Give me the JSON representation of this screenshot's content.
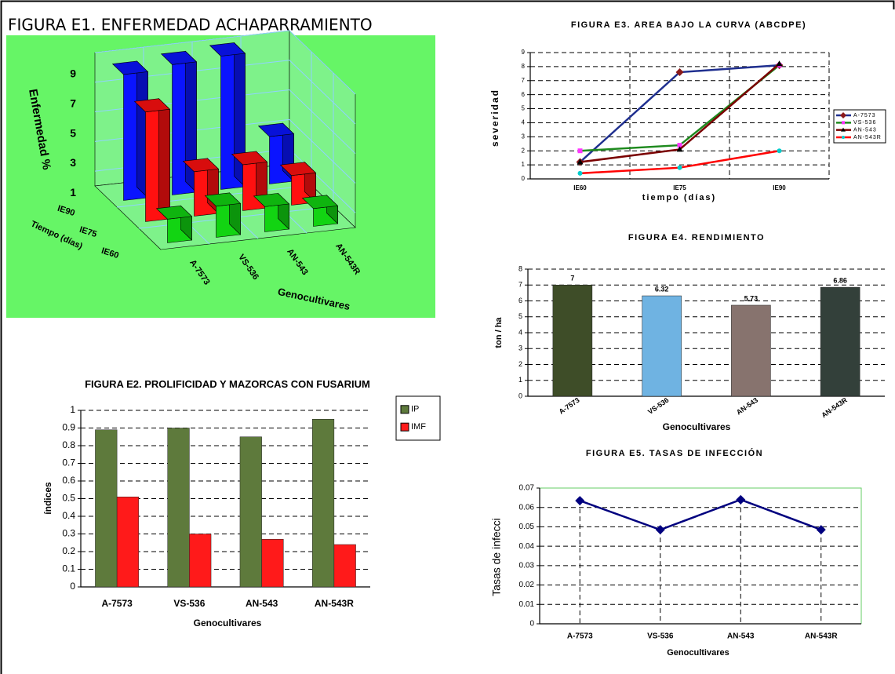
{
  "chart_data": [
    {
      "type": "bar3d",
      "title": "FIGURA E1. ENFERMEDAD ACHAPARRAMIENTO",
      "ylabel": "Enfermedad %",
      "xlabel": "Genocultivares",
      "zlabel": "Tiempo (días)",
      "background": "#66f566",
      "categories": [
        "A-7573",
        "VS-536",
        "AN-543",
        "AN-543R"
      ],
      "series": [
        {
          "name": "IE90",
          "color": "#0a14ff",
          "values": [
            8.5,
            8.8,
            9.0,
            3.2
          ]
        },
        {
          "name": "IE75",
          "color": "#ff1010",
          "values": [
            7.4,
            3.0,
            3.1,
            2.0
          ]
        },
        {
          "name": "IE60",
          "color": "#12d412",
          "values": [
            1.6,
            2.1,
            1.7,
            1.2
          ]
        }
      ],
      "ylim": [
        0,
        9
      ],
      "yticks": [
        1,
        3,
        5,
        7,
        9
      ],
      "grid": true
    },
    {
      "type": "bar",
      "title": "FIGURA E2. PROLIFICIDAD Y MAZORCAS CON FUSARIUM",
      "ylabel": "índices",
      "xlabel": "Genocultivares",
      "categories": [
        "A-7573",
        "VS-536",
        "AN-543",
        "AN-543R"
      ],
      "series": [
        {
          "name": "IP",
          "color": "#5e7a3c",
          "values": [
            0.89,
            0.9,
            0.85,
            0.95
          ]
        },
        {
          "name": "IMF",
          "color": "#ff1a1a",
          "values": [
            0.51,
            0.3,
            0.27,
            0.24
          ]
        }
      ],
      "ylim": [
        0,
        1
      ],
      "yticks": [
        0,
        0.1,
        0.2,
        0.3,
        0.4,
        0.5,
        0.6,
        0.7,
        0.8,
        0.9,
        1
      ],
      "grid": true,
      "legend": "right"
    },
    {
      "type": "line",
      "title": "FIGURA E3. AREA BAJO LA CURVA (ABCDPE)",
      "ylabel": "severidad",
      "xlabel": "tiempo (días)",
      "categories": [
        "IE60",
        "IE75",
        "IE90"
      ],
      "series": [
        {
          "name": "A-7573",
          "color": "#1f2f8f",
          "marker": "diamond",
          "marker_color": "#8b1a1a",
          "values": [
            1.2,
            7.6,
            8.1
          ]
        },
        {
          "name": "VS-536",
          "color": "#1e8a1e",
          "marker": "square",
          "marker_color": "#ff33ff",
          "values": [
            2.0,
            2.4,
            8.1
          ]
        },
        {
          "name": "AN-543",
          "color": "#7a0000",
          "marker": "triangle",
          "marker_color": "#000000",
          "values": [
            1.2,
            2.1,
            8.2
          ]
        },
        {
          "name": "AN-543R",
          "color": "#ff0000",
          "marker": "circle",
          "marker_color": "#00cccc",
          "values": [
            0.4,
            0.8,
            2.0
          ]
        }
      ],
      "ylim": [
        0,
        9
      ],
      "yticks": [
        0,
        1,
        2,
        3,
        4,
        5,
        6,
        7,
        8,
        9
      ],
      "grid": true,
      "legend": "right"
    },
    {
      "type": "bar",
      "title": "FIGURA E4. RENDIMIENTO",
      "ylabel": "ton / ha",
      "xlabel": "Genocultivares",
      "categories": [
        "A-7573",
        "VS-536",
        "AN-543",
        "AN-543R"
      ],
      "values": [
        7,
        6.32,
        5.73,
        6.86
      ],
      "colors": [
        "#3e4d28",
        "#6fb3e2",
        "#87736e",
        "#33403a"
      ],
      "data_labels": true,
      "ylim": [
        0,
        8
      ],
      "yticks": [
        0,
        1,
        2,
        3,
        4,
        5,
        6,
        7,
        8
      ],
      "grid": true
    },
    {
      "type": "line",
      "title": "FIGURA E5. TASAS DE INFECCIÓN",
      "ylabel": "Tasas de infecci",
      "xlabel": "Genocultivares",
      "categories": [
        "A-7573",
        "VS-536",
        "AN-543",
        "AN-543R"
      ],
      "values": [
        0.0635,
        0.0485,
        0.064,
        0.0485
      ],
      "color": "#00007f",
      "marker": "diamond",
      "ylim": [
        0,
        0.07
      ],
      "yticks": [
        0,
        0.01,
        0.02,
        0.03,
        0.04,
        0.05,
        0.06,
        0.07
      ],
      "grid": true,
      "drop_lines": true
    }
  ]
}
